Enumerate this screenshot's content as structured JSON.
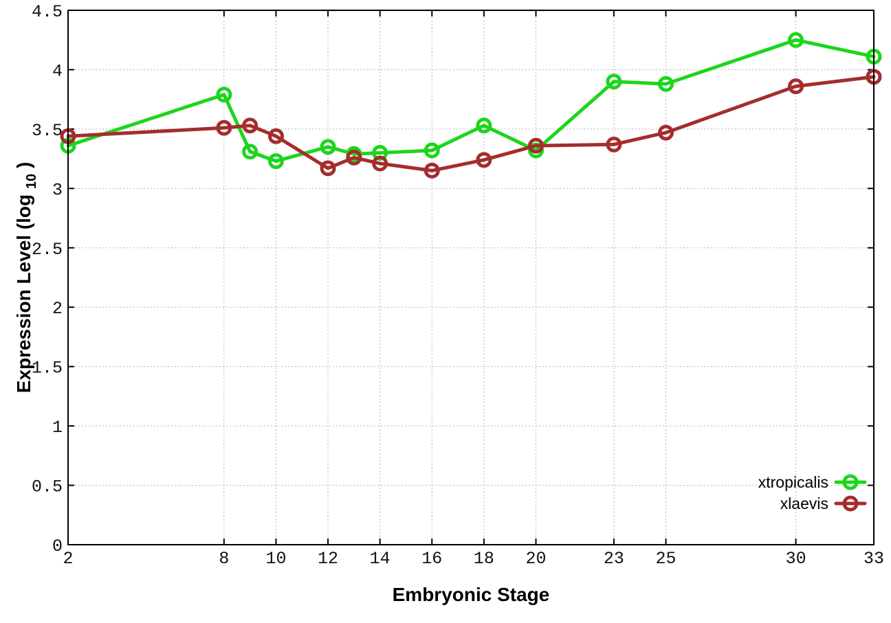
{
  "chart_data": {
    "type": "line",
    "title": "",
    "xlabel": "Embryonic Stage",
    "ylabel": "Expression Level (log10)",
    "ylabel_parts": {
      "pre": "Expression Level (log",
      "sub": "10",
      "post": ")"
    },
    "xlim": [
      2,
      33
    ],
    "ylim": [
      0,
      4.5
    ],
    "x_ticks": [
      2,
      8,
      10,
      12,
      14,
      16,
      18,
      20,
      23,
      25,
      30,
      33
    ],
    "y_ticks": [
      0,
      0.5,
      1,
      1.5,
      2,
      2.5,
      3,
      3.5,
      4,
      4.5
    ],
    "y_tick_labels": [
      "0",
      "0.5",
      "1",
      "1.5",
      "2",
      "2.5",
      "3",
      "3.5",
      "4",
      "4.5"
    ],
    "grid": true,
    "legend_position": "bottom-right",
    "x": [
      2,
      8,
      9,
      10,
      12,
      13,
      14,
      16,
      18,
      20,
      23,
      25,
      30,
      33
    ],
    "series": [
      {
        "name": "xtropicalis",
        "color": "#1dd51d",
        "values": [
          3.36,
          3.79,
          3.31,
          3.23,
          3.35,
          3.29,
          3.3,
          3.32,
          3.53,
          3.32,
          3.9,
          3.88,
          4.25,
          4.11
        ]
      },
      {
        "name": "xlaevis",
        "color": "#a42d2d",
        "values": [
          3.44,
          3.51,
          3.53,
          3.44,
          3.17,
          3.26,
          3.21,
          3.15,
          3.24,
          3.36,
          3.37,
          3.47,
          3.86,
          3.94
        ]
      }
    ],
    "background": "#ffffff",
    "grid_color": "#b5b5b5",
    "border_color": "#000000"
  }
}
